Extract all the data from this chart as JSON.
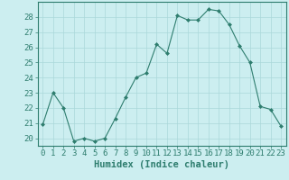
{
  "x": [
    0,
    1,
    2,
    3,
    4,
    5,
    6,
    7,
    8,
    9,
    10,
    11,
    12,
    13,
    14,
    15,
    16,
    17,
    18,
    19,
    20,
    21,
    22,
    23
  ],
  "y": [
    20.9,
    23.0,
    22.0,
    19.8,
    20.0,
    19.8,
    20.0,
    21.3,
    22.7,
    24.0,
    24.3,
    26.2,
    25.6,
    28.1,
    27.8,
    27.8,
    28.5,
    28.4,
    27.5,
    26.1,
    25.0,
    22.1,
    21.9,
    20.8
  ],
  "line_color": "#2e7d6e",
  "marker": "D",
  "marker_size": 2.0,
  "bg_color": "#cceef0",
  "grid_color": "#aad8da",
  "xlabel": "Humidex (Indice chaleur)",
  "xlim": [
    -0.5,
    23.5
  ],
  "ylim": [
    19.5,
    29.0
  ],
  "yticks": [
    20,
    21,
    22,
    23,
    24,
    25,
    26,
    27,
    28
  ],
  "xticks": [
    0,
    1,
    2,
    3,
    4,
    5,
    6,
    7,
    8,
    9,
    10,
    11,
    12,
    13,
    14,
    15,
    16,
    17,
    18,
    19,
    20,
    21,
    22,
    23
  ],
  "tick_color": "#2e7d6e",
  "label_color": "#2e7d6e",
  "xlabel_fontsize": 7.5,
  "tick_fontsize": 6.5
}
